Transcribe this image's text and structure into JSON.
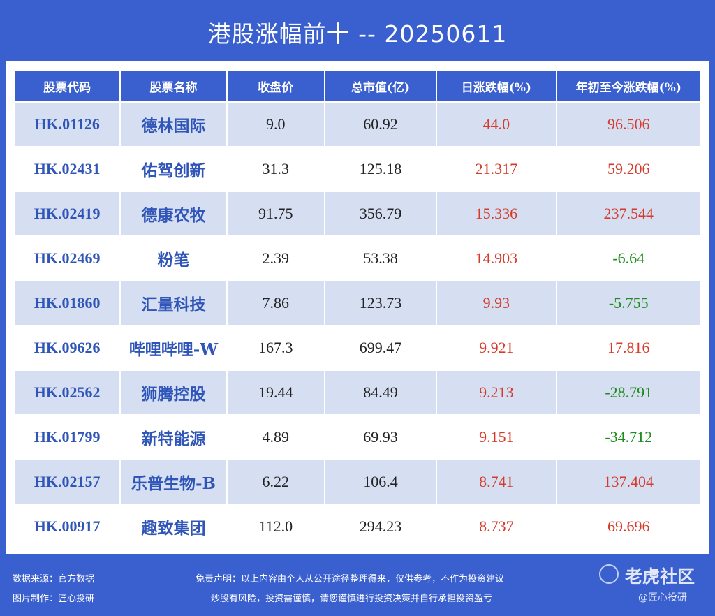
{
  "title": "港股涨幅前十 -- 20250611",
  "headers": [
    "股票代码",
    "股票名称",
    "收盘价",
    "总市值(亿)",
    "日涨跌幅(%)",
    "年初至今涨跌幅(%)"
  ],
  "rows": [
    {
      "code": "HK.01126",
      "name": "德林国际",
      "close": "9.0",
      "cap": "60.92",
      "day": "44.0",
      "ytd": "96.506",
      "ytd_dir": "red"
    },
    {
      "code": "HK.02431",
      "name": "佑驾创新",
      "close": "31.3",
      "cap": "125.18",
      "day": "21.317",
      "ytd": "59.206",
      "ytd_dir": "red"
    },
    {
      "code": "HK.02419",
      "name": "德康农牧",
      "close": "91.75",
      "cap": "356.79",
      "day": "15.336",
      "ytd": "237.544",
      "ytd_dir": "red"
    },
    {
      "code": "HK.02469",
      "name": "粉笔",
      "close": "2.39",
      "cap": "53.38",
      "day": "14.903",
      "ytd": "-6.64",
      "ytd_dir": "green"
    },
    {
      "code": "HK.01860",
      "name": "汇量科技",
      "close": "7.86",
      "cap": "123.73",
      "day": "9.93",
      "ytd": "-5.755",
      "ytd_dir": "green"
    },
    {
      "code": "HK.09626",
      "name": "哔哩哔哩-W",
      "close": "167.3",
      "cap": "699.47",
      "day": "9.921",
      "ytd": "17.816",
      "ytd_dir": "red"
    },
    {
      "code": "HK.02562",
      "name": "狮腾控股",
      "close": "19.44",
      "cap": "84.49",
      "day": "9.213",
      "ytd": "-28.791",
      "ytd_dir": "green"
    },
    {
      "code": "HK.01799",
      "name": "新特能源",
      "close": "4.89",
      "cap": "69.93",
      "day": "9.151",
      "ytd": "-34.712",
      "ytd_dir": "green"
    },
    {
      "code": "HK.02157",
      "name": "乐普生物-B",
      "close": "6.22",
      "cap": "106.4",
      "day": "8.741",
      "ytd": "137.404",
      "ytd_dir": "red"
    },
    {
      "code": "HK.00917",
      "name": "趣致集团",
      "close": "112.0",
      "cap": "294.23",
      "day": "8.737",
      "ytd": "69.696",
      "ytd_dir": "red"
    }
  ],
  "footer": {
    "source": "数据来源：官方数据",
    "maker": "图片制作：匠心投研",
    "disclaimer1": "免责声明：以上内容由个人从公开途径整理得来，仅供参考，不作为投资建议",
    "disclaimer2": "炒股有风险，投资需谨慎，请您谨慎进行投资决策并自行承担投资盈亏"
  },
  "watermark": {
    "brand": "老虎社区",
    "handle": "@匠心投研"
  },
  "colors": {
    "background": "#3a5fcf",
    "header_bg": "#3a5fcf",
    "row_alt": "#d6dff1",
    "up": "#d53a2a",
    "down": "#1d8c1d",
    "code_text": "#2f55b8"
  }
}
